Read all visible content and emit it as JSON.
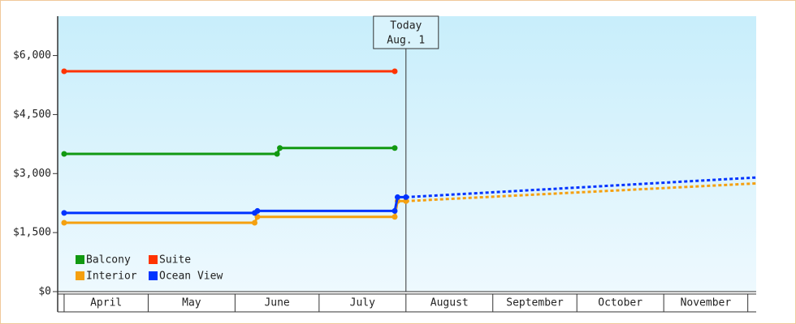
{
  "chart_data": {
    "type": "line",
    "annotation": {
      "lines": [
        "Today",
        "Aug. 1"
      ],
      "x": 122
    },
    "xlim": [
      -2.3,
      247
    ],
    "xticks": [
      0,
      30,
      61,
      91,
      122,
      153,
      183,
      214,
      244
    ],
    "month_labels": [
      "April",
      "May",
      "June",
      "July",
      "August",
      "September",
      "October",
      "November"
    ],
    "ylim": [
      0,
      7000
    ],
    "yticks": [
      {
        "value": 0,
        "label": "$0"
      },
      {
        "value": 1500,
        "label": "$1,500"
      },
      {
        "value": 3000,
        "label": "$3,000"
      },
      {
        "value": 4500,
        "label": "$4,500"
      },
      {
        "value": 6000,
        "label": "$6,000"
      }
    ],
    "legend": "lower left",
    "series": [
      {
        "name": "Balcony",
        "color": "#119911",
        "x": [
          0,
          76,
          77,
          118
        ],
        "values": [
          3500,
          3500,
          3650,
          3650
        ],
        "forecast_x": [],
        "forecast_values": []
      },
      {
        "name": "Suite",
        "color": "#ff3300",
        "x": [
          0,
          118
        ],
        "values": [
          5600,
          5600
        ],
        "forecast_x": [],
        "forecast_values": []
      },
      {
        "name": "Interior",
        "color": "#f5a00f",
        "x": [
          0,
          68,
          69,
          118,
          119,
          122
        ],
        "values": [
          1750,
          1750,
          1900,
          1900,
          2300,
          2300
        ],
        "forecast_x": [
          122,
          247
        ],
        "forecast_values": [
          2300,
          2750
        ]
      },
      {
        "name": "Ocean View",
        "color": "#0033ff",
        "x": [
          0,
          68,
          69,
          118,
          119,
          122
        ],
        "values": [
          2000,
          2000,
          2050,
          2050,
          2400,
          2400
        ],
        "forecast_x": [
          122,
          247
        ],
        "forecast_values": [
          2400,
          2900
        ]
      }
    ]
  }
}
